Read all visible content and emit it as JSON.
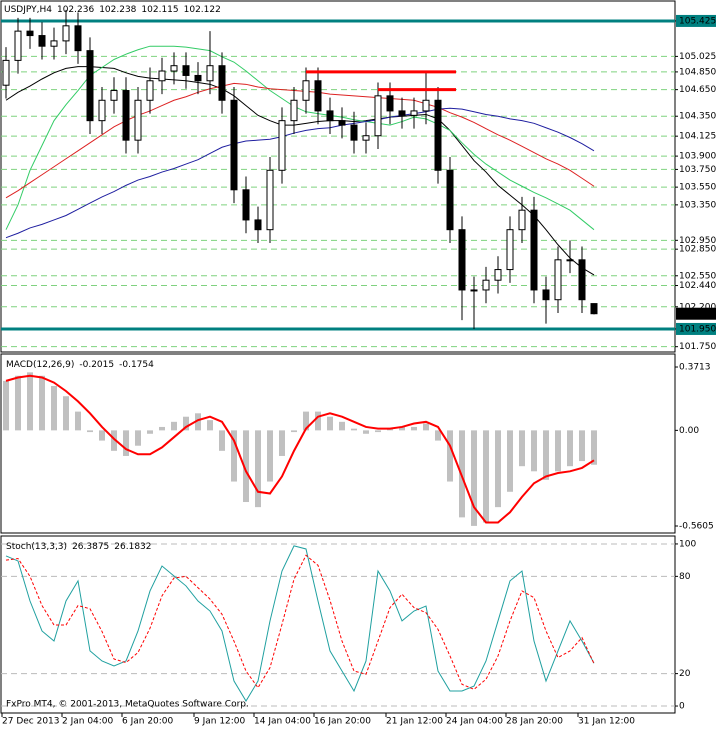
{
  "footer": "FxPro MT4, © 2001-2013, MetaQuotes Software Corp.",
  "chart_data": [
    {
      "type": "candlestick",
      "title": "USDJPY,H4",
      "categories": [
        "27 Dec 2013",
        null,
        null,
        null,
        null,
        "2 Jan 04:00",
        null,
        null,
        null,
        null,
        "6 Jan 20:00",
        null,
        null,
        null,
        null,
        null,
        "9 Jan 12:00",
        null,
        null,
        null,
        null,
        "14 Jan 04:00",
        null,
        null,
        null,
        null,
        "16 Jan 20:00",
        null,
        null,
        null,
        null,
        null,
        "21 Jan 12:00",
        null,
        null,
        null,
        null,
        "24 Jan 04:00",
        null,
        null,
        null,
        null,
        "28 Jan 20:00",
        null,
        null,
        null,
        null,
        null,
        "31 Jan 12:00",
        null
      ],
      "open": [
        104.7,
        104.98,
        105.31,
        105.26,
        105.14,
        105.2,
        105.37,
        105.09,
        104.3,
        104.53,
        104.64,
        104.08,
        104.53,
        104.75,
        104.86,
        104.92,
        104.81,
        104.75,
        104.92,
        104.53,
        103.52,
        103.18,
        103.07,
        103.74,
        104.3,
        104.53,
        104.75,
        104.41,
        104.3,
        104.25,
        104.08,
        104.13,
        104.58,
        104.41,
        104.36,
        104.41,
        104.53,
        103.74,
        103.07,
        102.39,
        102.39,
        102.5,
        102.62,
        103.07,
        103.29,
        102.39,
        102.28,
        102.73,
        102.73,
        102.236
      ],
      "high": [
        105.13,
        105.46,
        105.46,
        105.41,
        105.35,
        105.55,
        105.52,
        105.24,
        104.68,
        104.79,
        104.79,
        104.68,
        104.9,
        105.01,
        105.07,
        105.07,
        104.96,
        105.31,
        105.07,
        104.68,
        103.67,
        103.33,
        103.89,
        104.45,
        104.68,
        104.9,
        104.9,
        104.56,
        104.45,
        104.4,
        104.28,
        104.73,
        104.73,
        104.56,
        104.56,
        104.85,
        104.68,
        103.89,
        103.22,
        102.54,
        102.65,
        102.77,
        103.22,
        103.44,
        103.44,
        102.54,
        102.88,
        102.95,
        102.88,
        102.238
      ],
      "low": [
        104.55,
        104.83,
        105.11,
        104.99,
        104.99,
        105.05,
        104.94,
        104.15,
        104.15,
        104.38,
        103.93,
        103.93,
        104.38,
        104.6,
        104.71,
        104.66,
        104.6,
        104.6,
        104.38,
        103.37,
        103.03,
        102.92,
        102.92,
        103.59,
        104.15,
        104.38,
        104.26,
        104.15,
        104.1,
        103.93,
        103.93,
        103.98,
        104.26,
        104.21,
        104.21,
        104.26,
        103.59,
        102.92,
        102.05,
        101.95,
        102.24,
        102.35,
        102.47,
        102.92,
        102.24,
        102.01,
        102.13,
        102.58,
        102.13,
        102.115
      ],
      "close": [
        104.98,
        105.31,
        105.26,
        105.14,
        105.2,
        105.37,
        105.09,
        104.3,
        104.53,
        104.64,
        104.08,
        104.53,
        104.75,
        104.86,
        104.92,
        104.81,
        104.75,
        104.92,
        104.53,
        103.52,
        103.18,
        103.07,
        103.74,
        104.3,
        104.53,
        104.75,
        104.41,
        104.3,
        104.25,
        104.08,
        104.13,
        104.58,
        104.41,
        104.36,
        104.41,
        104.53,
        103.74,
        103.07,
        102.39,
        102.39,
        102.5,
        102.62,
        103.07,
        103.29,
        102.39,
        102.28,
        102.73,
        102.73,
        102.28,
        102.122
      ],
      "up_color": "#ffffff",
      "down_color": "#000000",
      "series": [
        {
          "color": "#000000",
          "values": [
            104.53,
            104.62,
            104.69,
            104.77,
            104.84,
            104.89,
            104.91,
            104.91,
            104.9,
            104.89,
            104.84,
            104.8,
            104.78,
            104.77,
            104.76,
            104.75,
            104.73,
            104.71,
            104.66,
            104.58,
            104.47,
            104.36,
            104.3,
            104.25,
            104.25,
            104.27,
            104.29,
            104.3,
            104.3,
            104.29,
            104.3,
            104.32,
            104.34,
            104.35,
            104.36,
            104.37,
            104.32,
            104.19,
            104.02,
            103.85,
            103.72,
            103.57,
            103.46,
            103.35,
            103.23,
            103.07,
            102.9,
            102.75,
            102.64,
            102.56
          ]
        },
        {
          "color": "#33cc66",
          "values": [
            103.07,
            103.35,
            103.74,
            104.02,
            104.3,
            104.48,
            104.64,
            104.81,
            104.9,
            104.99,
            105.05,
            105.1,
            105.14,
            105.14,
            105.14,
            105.13,
            105.11,
            105.09,
            105.02,
            104.96,
            104.86,
            104.75,
            104.64,
            104.55,
            104.46,
            104.4,
            104.38,
            104.36,
            104.34,
            104.31,
            104.29,
            104.27,
            104.25,
            104.29,
            104.34,
            104.32,
            104.26,
            104.19,
            104.05,
            103.92,
            103.81,
            103.72,
            103.63,
            103.56,
            103.49,
            103.43,
            103.36,
            103.29,
            103.18,
            103.07
          ]
        },
        {
          "color": "#dd2222",
          "values": [
            103.43,
            103.51,
            103.6,
            103.69,
            103.78,
            103.87,
            103.96,
            104.05,
            104.14,
            104.23,
            104.3,
            104.36,
            104.41,
            104.47,
            104.53,
            104.57,
            104.62,
            104.66,
            104.69,
            104.72,
            104.71,
            104.68,
            104.66,
            104.65,
            104.64,
            104.63,
            104.62,
            104.6,
            104.59,
            104.58,
            104.57,
            104.56,
            104.55,
            104.54,
            104.53,
            104.49,
            104.45,
            104.39,
            104.34,
            104.28,
            104.21,
            104.14,
            104.08,
            104.01,
            103.94,
            103.87,
            103.81,
            103.74,
            103.65,
            103.56
          ]
        },
        {
          "color": "#1f1fa0",
          "values": [
            102.98,
            103.03,
            103.09,
            103.13,
            103.18,
            103.23,
            103.3,
            103.37,
            103.44,
            103.5,
            103.57,
            103.63,
            103.67,
            103.72,
            103.76,
            103.81,
            103.86,
            103.93,
            104.0,
            104.04,
            104.07,
            104.08,
            104.09,
            104.12,
            104.16,
            104.19,
            104.21,
            104.22,
            104.25,
            104.27,
            104.29,
            104.31,
            104.34,
            104.36,
            104.38,
            104.4,
            104.43,
            104.44,
            104.43,
            104.4,
            104.37,
            104.35,
            104.32,
            104.3,
            104.27,
            104.22,
            104.17,
            104.11,
            104.04,
            103.96
          ]
        }
      ],
      "ylim": [
        101.69,
        105.65
      ],
      "yticks": [
        105.425,
        105.025,
        {
          "value": 104.85,
          "label": "104.850"
        },
        {
          "value": 104.65,
          "label": "104.650"
        },
        {
          "value": 104.35,
          "label": "104.350"
        },
        104.125,
        {
          "value": 103.9,
          "label": "103.900"
        },
        {
          "value": 103.75,
          "label": "103.750"
        },
        {
          "value": 103.55,
          "label": "103.550"
        },
        {
          "value": 103.35,
          "label": "103.350"
        },
        {
          "value": 102.95,
          "label": "102.950"
        },
        {
          "value": 102.85,
          "label": "102.850"
        },
        {
          "value": 102.55,
          "label": "102.550"
        },
        {
          "value": 102.44,
          "label": "102.440"
        },
        {
          "value": 102.2,
          "label": "102.200"
        },
        {
          "value": 101.95,
          "label": "101.950"
        },
        {
          "value": 101.75,
          "label": "101.750"
        }
      ],
      "grid": true,
      "grid_color": "#7fd27f",
      "highlight_levels": [
        105.425,
        101.95
      ],
      "highlight_color": "#008080",
      "hlines": [
        {
          "value": 104.85,
          "from": 25,
          "to": 37
        },
        {
          "value": 104.65,
          "from": 31,
          "to": 37
        }
      ],
      "hline_color": "#ff0000"
    },
    {
      "type": "macd",
      "title": "MACD(12,26,9)",
      "series": [
        {
          "style": "bar",
          "color": "#c0c0c0",
          "values": [
            0.29,
            0.32,
            0.34,
            0.32,
            0.26,
            0.2,
            0.11,
            -0.01,
            -0.06,
            -0.12,
            -0.15,
            -0.09,
            -0.02,
            0.02,
            0.05,
            0.08,
            0.1,
            0.06,
            -0.12,
            -0.3,
            -0.42,
            -0.45,
            -0.3,
            -0.15,
            -0.01,
            0.11,
            0.11,
            0.08,
            0.05,
            0.01,
            -0.02,
            -0.01,
            0.01,
            0.02,
            0.02,
            0.04,
            -0.06,
            -0.3,
            -0.51,
            -0.56,
            -0.54,
            -0.45,
            -0.36,
            -0.21,
            -0.24,
            -0.29,
            -0.24,
            -0.21,
            -0.18,
            -0.2015
          ]
        },
        {
          "style": "line",
          "color": "#ff0000",
          "values": [
            0.29,
            0.31,
            0.32,
            0.31,
            0.28,
            0.23,
            0.17,
            0.1,
            0.02,
            -0.05,
            -0.11,
            -0.14,
            -0.14,
            -0.1,
            -0.04,
            0.02,
            0.06,
            0.08,
            0.05,
            -0.06,
            -0.24,
            -0.36,
            -0.37,
            -0.27,
            -0.12,
            0.01,
            0.08,
            0.1,
            0.08,
            0.05,
            0.02,
            0.01,
            0.01,
            0.02,
            0.04,
            0.05,
            0.02,
            -0.09,
            -0.27,
            -0.45,
            -0.54,
            -0.54,
            -0.48,
            -0.39,
            -0.31,
            -0.27,
            -0.25,
            -0.24,
            -0.22,
            -0.1754
          ]
        }
      ],
      "ylim": [
        -0.6016,
        0.4476
      ],
      "yticks": [
        0.3713,
        {
          "value": 0,
          "label": "0.00"
        },
        -0.5605
      ],
      "grid": false
    },
    {
      "type": "line",
      "title": "Stoch(13,3,3)",
      "series": [
        {
          "style": "solid",
          "color": "#20a0a0",
          "values": [
            92.6,
            89.5,
            64.8,
            46.3,
            40.1,
            64.8,
            77.2,
            34.0,
            27.8,
            24.7,
            27.8,
            46.3,
            71.0,
            86.4,
            80.2,
            74.1,
            64.8,
            58.6,
            46.3,
            15.4,
            3.1,
            15.4,
            52.5,
            83.3,
            98.8,
            96.9,
            64.8,
            34.0,
            21.6,
            9.3,
            27.8,
            83.3,
            71.0,
            52.5,
            58.6,
            61.7,
            21.6,
            9.3,
            9.3,
            12.3,
            27.8,
            52.5,
            77.2,
            83.3,
            40.1,
            15.4,
            34.0,
            52.5,
            40.1,
            26.3875
          ]
        },
        {
          "style": "dashed",
          "color": "#ff0000",
          "values": [
            90.0,
            91.0,
            80.0,
            62.0,
            50.0,
            50.0,
            62.0,
            60.0,
            46.0,
            29.0,
            26.8,
            33.0,
            48.0,
            68.0,
            79.0,
            80.0,
            73.0,
            66.0,
            56.6,
            40.0,
            21.6,
            11.3,
            23.7,
            50.4,
            78.2,
            93.0,
            86.8,
            65.2,
            40.1,
            21.6,
            19.6,
            40.1,
            60.7,
            69.0,
            60.7,
            57.6,
            47.3,
            30.9,
            13.4,
            10.3,
            16.5,
            30.9,
            52.5,
            71.0,
            66.9,
            46.3,
            29.9,
            34.0,
            42.2,
            26.1832
          ]
        }
      ],
      "ylim": [
        -4.3,
        104.9
      ],
      "yticks": [
        100,
        80,
        20,
        0
      ],
      "grid": true,
      "grid_color": "#bbbbbb"
    }
  ]
}
